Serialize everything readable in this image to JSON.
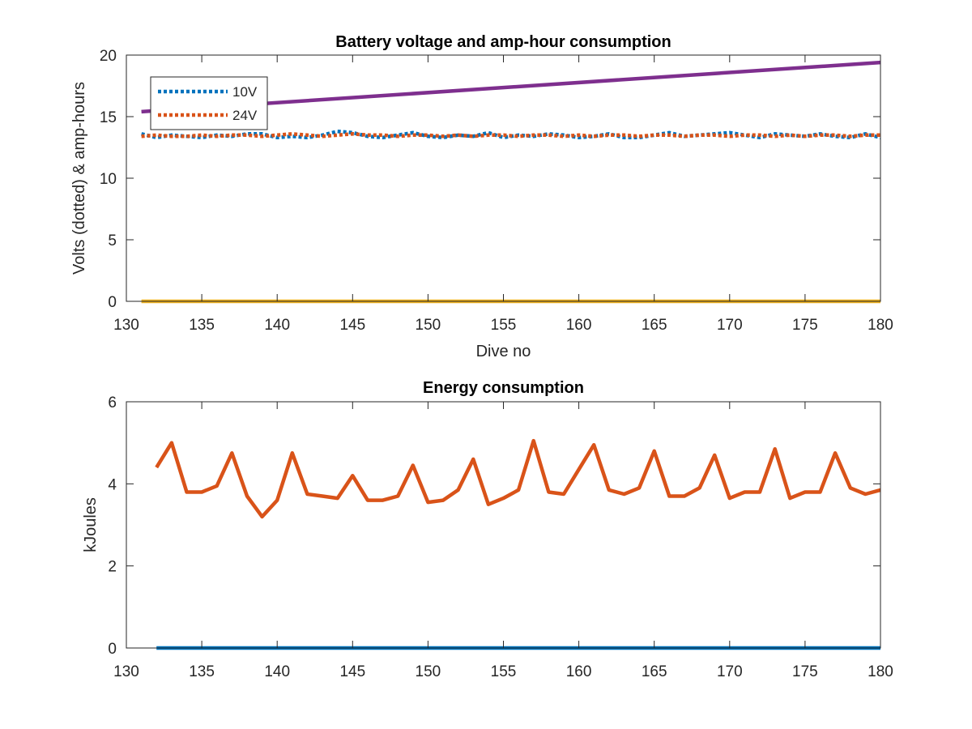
{
  "chart_data": [
    {
      "type": "line",
      "title": "Battery voltage and amp-hour consumption",
      "xlabel": "Dive no",
      "ylabel": "Volts (dotted) & amp-hours",
      "xlim": [
        130,
        180
      ],
      "ylim": [
        0,
        20
      ],
      "xticks": [
        130,
        135,
        140,
        145,
        150,
        155,
        160,
        165,
        170,
        175,
        180
      ],
      "yticks": [
        0,
        5,
        10,
        15,
        20
      ],
      "grid": false,
      "legend_position": "top-left",
      "series": [
        {
          "name": "10V",
          "color": "#0072BD",
          "style": "dotted",
          "x": [
            131,
            132,
            133,
            134,
            135,
            136,
            137,
            138,
            139,
            140,
            141,
            142,
            143,
            144,
            145,
            146,
            147,
            148,
            149,
            150,
            151,
            152,
            153,
            154,
            155,
            156,
            157,
            158,
            159,
            160,
            161,
            162,
            163,
            164,
            165,
            166,
            167,
            168,
            169,
            170,
            171,
            172,
            173,
            174,
            175,
            176,
            177,
            178,
            179,
            180
          ],
          "values": [
            13.6,
            13.3,
            13.5,
            13.4,
            13.3,
            13.5,
            13.4,
            13.6,
            13.6,
            13.3,
            13.4,
            13.3,
            13.5,
            13.8,
            13.7,
            13.4,
            13.3,
            13.5,
            13.7,
            13.4,
            13.3,
            13.5,
            13.4,
            13.7,
            13.3,
            13.5,
            13.4,
            13.6,
            13.5,
            13.3,
            13.4,
            13.6,
            13.3,
            13.3,
            13.5,
            13.7,
            13.4,
            13.5,
            13.6,
            13.7,
            13.5,
            13.3,
            13.6,
            13.5,
            13.4,
            13.6,
            13.4,
            13.3,
            13.6,
            13.3
          ]
        },
        {
          "name": "24V",
          "color": "#D95319",
          "style": "dotted",
          "x": [
            131,
            132,
            133,
            134,
            135,
            136,
            137,
            138,
            139,
            140,
            141,
            142,
            143,
            144,
            145,
            146,
            147,
            148,
            149,
            150,
            151,
            152,
            153,
            154,
            155,
            156,
            157,
            158,
            159,
            160,
            161,
            162,
            163,
            164,
            165,
            166,
            167,
            168,
            169,
            170,
            171,
            172,
            173,
            174,
            175,
            176,
            177,
            178,
            179,
            180
          ],
          "values": [
            13.4,
            13.5,
            13.4,
            13.4,
            13.5,
            13.4,
            13.5,
            13.5,
            13.4,
            13.5,
            13.6,
            13.5,
            13.4,
            13.5,
            13.6,
            13.5,
            13.5,
            13.4,
            13.5,
            13.5,
            13.4,
            13.5,
            13.4,
            13.5,
            13.5,
            13.4,
            13.5,
            13.5,
            13.4,
            13.5,
            13.4,
            13.5,
            13.5,
            13.4,
            13.5,
            13.5,
            13.4,
            13.5,
            13.5,
            13.4,
            13.5,
            13.5,
            13.4,
            13.5,
            13.4,
            13.5,
            13.5,
            13.4,
            13.5,
            13.5
          ]
        },
        {
          "color": "#EDB120",
          "style": "solid",
          "x": [
            131,
            180
          ],
          "values": [
            0,
            0
          ]
        },
        {
          "color": "#7E2F8E",
          "style": "solid",
          "x": [
            131,
            180
          ],
          "values": [
            15.4,
            19.4
          ]
        }
      ]
    },
    {
      "type": "line",
      "title": "Energy consumption",
      "xlabel": "",
      "ylabel": "kJoules",
      "xlim": [
        130,
        180
      ],
      "ylim": [
        0,
        6
      ],
      "xticks": [
        130,
        135,
        140,
        145,
        150,
        155,
        160,
        165,
        170,
        175,
        180
      ],
      "yticks": [
        0,
        2,
        4,
        6
      ],
      "grid": false,
      "series": [
        {
          "color": "#0072BD",
          "style": "solid",
          "x": [
            132,
            180
          ],
          "values": [
            0,
            0
          ]
        },
        {
          "color": "#D95319",
          "style": "solid",
          "x": [
            132,
            133,
            134,
            135,
            136,
            137,
            138,
            139,
            140,
            141,
            142,
            143,
            144,
            145,
            146,
            147,
            148,
            149,
            150,
            151,
            152,
            153,
            154,
            155,
            156,
            157,
            158,
            159,
            160,
            161,
            162,
            163,
            164,
            165,
            166,
            167,
            168,
            169,
            170,
            171,
            172,
            173,
            174,
            175,
            176,
            177,
            178,
            179,
            180
          ],
          "values": [
            4.4,
            5.0,
            3.8,
            3.8,
            3.95,
            4.75,
            3.7,
            3.2,
            3.6,
            4.75,
            3.75,
            3.7,
            3.65,
            4.2,
            3.6,
            3.6,
            3.7,
            4.45,
            3.55,
            3.6,
            3.85,
            4.6,
            3.5,
            3.65,
            3.85,
            5.05,
            3.8,
            3.75,
            4.35,
            4.95,
            3.85,
            3.75,
            3.9,
            4.8,
            3.7,
            3.7,
            3.9,
            4.7,
            3.65,
            3.8,
            3.8,
            4.85,
            3.65,
            3.8,
            3.8,
            4.75,
            3.9,
            3.75,
            3.85
          ]
        }
      ]
    }
  ]
}
